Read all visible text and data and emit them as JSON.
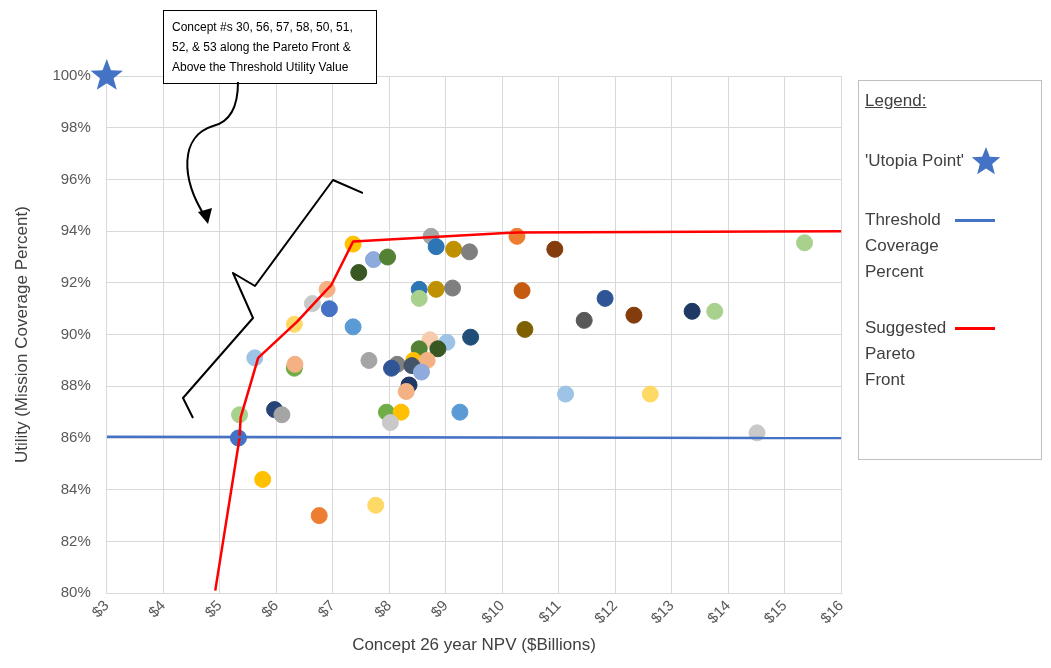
{
  "chart_data": {
    "type": "scatter",
    "xlabel": "Concept 26 year NPV ($Billions)",
    "ylabel": "Utility (Mission Coverage Percent)",
    "legend_title": "Legend:",
    "legend": "right",
    "grid": true,
    "xlim": [
      3,
      16
    ],
    "ylim": [
      80,
      100
    ],
    "xticks": [
      {
        "value": 3,
        "label": "$3"
      },
      {
        "value": 4,
        "label": "$4"
      },
      {
        "value": 5,
        "label": "$5"
      },
      {
        "value": 6,
        "label": "$6"
      },
      {
        "value": 7,
        "label": "$7"
      },
      {
        "value": 8,
        "label": "$8"
      },
      {
        "value": 9,
        "label": "$9"
      },
      {
        "value": 10,
        "label": "$10"
      },
      {
        "value": 11,
        "label": "$11"
      },
      {
        "value": 12,
        "label": "$12"
      },
      {
        "value": 13,
        "label": "$13"
      },
      {
        "value": 14,
        "label": "$14"
      },
      {
        "value": 15,
        "label": "$15"
      },
      {
        "value": 16,
        "label": "$16"
      }
    ],
    "yticks": [
      {
        "value": 80,
        "label": "80%"
      },
      {
        "value": 82,
        "label": "82%"
      },
      {
        "value": 84,
        "label": "84%"
      },
      {
        "value": 86,
        "label": "86%"
      },
      {
        "value": 88,
        "label": "88%"
      },
      {
        "value": 90,
        "label": "90%"
      },
      {
        "value": 92,
        "label": "92%"
      },
      {
        "value": 94,
        "label": "94%"
      },
      {
        "value": 96,
        "label": "96%"
      },
      {
        "value": 98,
        "label": "98%"
      },
      {
        "value": 100,
        "label": "100%"
      }
    ],
    "annotations": [
      "Concept #s 30, 56, 57, 58, 50, 51, 52, & 53 along the Pareto Front & Above the Threshold Utility Value"
    ],
    "series": [
      {
        "marker": "circle",
        "x": [
          5.33,
          5.35,
          5.62,
          5.76,
          5.97,
          6.1,
          6.32,
          6.33,
          6.32,
          6.64,
          6.94,
          6.9,
          7.36,
          7.36,
          7.72,
          7.97,
          7.46,
          7.64,
          7.95,
          8.21,
          8.02,
          8.74,
          8.83,
          9.14,
          9.42,
          8.53,
          8.53,
          8.83,
          9.12,
          8.72,
          9.02,
          9.44,
          8.53,
          8.86,
          8.14,
          8.04,
          8.43,
          8.67,
          8.4,
          8.57,
          8.35,
          8.3,
          9.25,
          6.76,
          7.76,
          10.26,
          10.93,
          10.35,
          10.4,
          11.45,
          11.82,
          12.33,
          13.36,
          13.76,
          15.35,
          11.12,
          12.62,
          14.51
        ],
        "values": [
          86.0,
          86.9,
          89.1,
          84.4,
          87.1,
          86.9,
          88.7,
          88.85,
          90.4,
          91.2,
          91.0,
          91.75,
          90.3,
          93.5,
          92.9,
          93.0,
          92.4,
          89.0,
          87.0,
          87.0,
          86.6,
          93.8,
          93.4,
          93.3,
          93.2,
          91.75,
          91.4,
          91.75,
          91.8,
          89.8,
          89.7,
          89.9,
          89.45,
          89.45,
          88.85,
          88.7,
          89.0,
          89.0,
          88.8,
          88.55,
          88.05,
          87.8,
          87.0,
          83.0,
          83.4,
          93.8,
          93.3,
          91.7,
          90.2,
          90.55,
          91.4,
          90.75,
          90.9,
          90.9,
          93.55,
          87.7,
          87.7,
          86.2
        ],
        "colors": [
          "#4472c4",
          "#a9d18e",
          "#9dc3e6",
          "#ffc000",
          "#264478",
          "#a5a5a5",
          "#70ad47",
          "#f4b183",
          "#ffd966",
          "#c9c9c9",
          "#4472c4",
          "#f4b183",
          "#5b9bd5",
          "#ffc000",
          "#8faadc",
          "#548235",
          "#385723",
          "#a5a5a5",
          "#70ad47",
          "#ffc000",
          "#c9c9c9",
          "#a5a5a5",
          "#2e75b6",
          "#bf9000",
          "#7f7f7f",
          "#2e75b6",
          "#a9d18e",
          "#bf9000",
          "#7f7f7f",
          "#f8cbad",
          "#9dc3e6",
          "#1f4e79",
          "#548235",
          "#385723",
          "#7f7f7f",
          "#2f5597",
          "#ffc000",
          "#f4b183",
          "#44546a",
          "#8faadc",
          "#1f3864",
          "#f4b183",
          "#5b9bd5",
          "#ed7d31",
          "#ffd966",
          "#ed7d31",
          "#843c0c",
          "#c55a11",
          "#7f6000",
          "#595959",
          "#2f5597",
          "#843c0c",
          "#1f3864",
          "#a9d18e",
          "#a9d18e",
          "#9dc3e6",
          "#ffd966",
          "#c9c9c9"
        ]
      },
      {
        "name": "'Utopia Point'",
        "type": "scatter",
        "marker": "star",
        "color": "#4472c4",
        "x": [
          3
        ],
        "values": [
          100
        ]
      },
      {
        "name": "Threshold Coverage Percent",
        "type": "line",
        "marker": "none",
        "line_style": "solid",
        "color": "#4472c4",
        "x": [
          3,
          16
        ],
        "values": [
          86.05,
          86.0
        ]
      },
      {
        "name": "Suggested Pareto Front",
        "type": "line",
        "marker": "none",
        "line_style": "solid",
        "color": "#ff0000",
        "x": [
          4.92,
          5.35,
          5.37,
          5.68,
          6.37,
          6.88,
          6.97,
          7.36,
          10.26,
          16
        ],
        "values": [
          80.1,
          86.0,
          86.8,
          89.1,
          90.5,
          91.7,
          91.9,
          93.6,
          93.95,
          94.0
        ]
      }
    ]
  }
}
